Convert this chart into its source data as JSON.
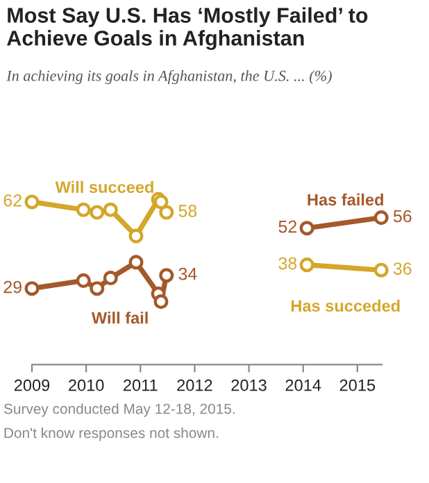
{
  "chart_data": {
    "type": "line",
    "title": "Most Say U.S. Has ‘Mostly Failed’ to Achieve Goals in Afghanistan",
    "subtitle": "In achieving its goals in Afghanistan, the U.S. ... (%)",
    "series": [
      {
        "name": "Will succeed",
        "color": "#d4a629",
        "x": [
          2009.0,
          2009.95,
          2010.2,
          2010.45,
          2010.92,
          2011.33,
          2011.38,
          2011.48
        ],
        "values": [
          62,
          59,
          58,
          59,
          49,
          63,
          62,
          58
        ],
        "value_labels": [
          "62",
          null,
          null,
          null,
          null,
          null,
          null,
          "58"
        ]
      },
      {
        "name": "Will fail",
        "color": "#a5582a",
        "x": [
          2009.0,
          2009.95,
          2010.2,
          2010.45,
          2010.92,
          2011.33,
          2011.38,
          2011.48
        ],
        "values": [
          29,
          32,
          29,
          33,
          39,
          27,
          24,
          34
        ],
        "value_labels": [
          "29",
          null,
          null,
          null,
          null,
          null,
          null,
          "34"
        ]
      },
      {
        "name": "Has failed",
        "color": "#a5582a",
        "x": [
          2014.07,
          2015.44
        ],
        "values": [
          52,
          56
        ],
        "value_labels": [
          "52",
          "56"
        ]
      },
      {
        "name": "Has succeded",
        "color": "#d4a629",
        "x": [
          2014.07,
          2015.44
        ],
        "values": [
          38,
          36
        ],
        "value_labels": [
          "38",
          "36"
        ]
      }
    ],
    "xlim": [
      2009,
      2015.45
    ],
    "xticks": [
      2009,
      2010,
      2011,
      2012,
      2013,
      2014,
      2015
    ],
    "tick_labels": "x",
    "grid": false,
    "legend": false,
    "marker": "circle",
    "line_style": "solid",
    "annotations": [
      "Survey conducted May 12-18, 2015.",
      "Don't know responses not shown."
    ]
  }
}
